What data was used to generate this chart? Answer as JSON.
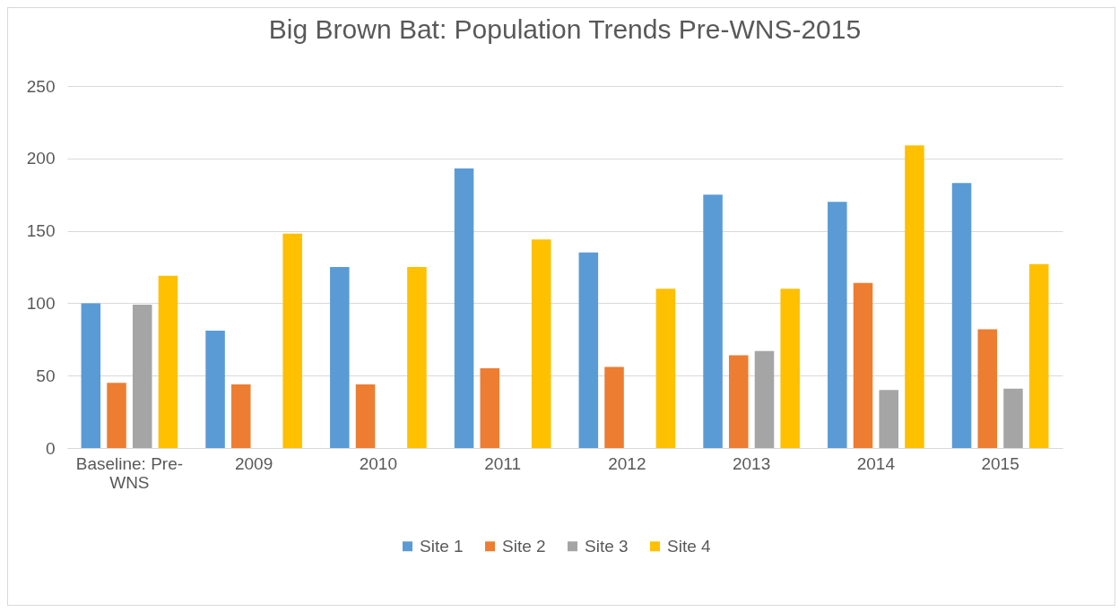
{
  "chart_data": {
    "type": "bar",
    "title": "Big Brown Bat: Population Trends Pre-WNS-2015",
    "categories": [
      "Baseline: Pre-WNS",
      "2009",
      "2010",
      "2011",
      "2012",
      "2013",
      "2014",
      "2015"
    ],
    "series": [
      {
        "name": "Site 1",
        "color": "#5b9bd5",
        "values": [
          100,
          81,
          125,
          193,
          135,
          175,
          170,
          183
        ]
      },
      {
        "name": "Site 2",
        "color": "#ed7d31",
        "values": [
          45,
          44,
          44,
          55,
          56,
          64,
          114,
          82
        ]
      },
      {
        "name": "Site 3",
        "color": "#a5a5a5",
        "values": [
          99,
          null,
          null,
          null,
          null,
          67,
          40,
          41
        ]
      },
      {
        "name": "Site 4",
        "color": "#ffc000",
        "values": [
          119,
          148,
          125,
          144,
          110,
          110,
          209,
          127
        ]
      }
    ],
    "ylim": [
      0,
      250
    ],
    "yticks": [
      0,
      50,
      100,
      150,
      200,
      250
    ],
    "grid": "y",
    "legend": "bottom"
  }
}
